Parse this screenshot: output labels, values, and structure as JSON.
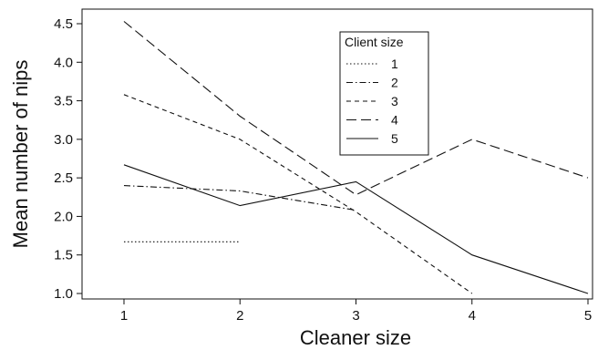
{
  "chart_data": {
    "type": "line",
    "xlabel": "Cleaner size",
    "ylabel": "Mean number of nips",
    "x_ticks": [
      1,
      2,
      3,
      4,
      5
    ],
    "y_ticks": [
      1.0,
      1.5,
      2.0,
      2.5,
      3.0,
      3.5,
      4.0,
      4.5
    ],
    "y_tick_labels": [
      "1.0",
      "1.5",
      "2.0",
      "2.5",
      "3.0",
      "3.5",
      "4.0",
      "4.5"
    ],
    "xlim": [
      0.5,
      5.05
    ],
    "ylim": [
      0.92,
      4.6
    ],
    "legend": {
      "title": "Client size",
      "position": "top-center"
    },
    "series": [
      {
        "name": "1",
        "dash": "dotted",
        "points": [
          [
            1,
            1.67
          ],
          [
            2,
            1.67
          ]
        ]
      },
      {
        "name": "2",
        "dash": "dashdot",
        "points": [
          [
            1,
            2.4
          ],
          [
            2,
            2.33
          ],
          [
            3,
            2.08
          ]
        ]
      },
      {
        "name": "3",
        "dash": "shortdash",
        "points": [
          [
            1,
            3.58
          ],
          [
            2,
            3.0
          ],
          [
            3,
            2.06
          ],
          [
            4,
            1.0
          ]
        ]
      },
      {
        "name": "4",
        "dash": "longdash",
        "points": [
          [
            1,
            4.53
          ],
          [
            2,
            3.3
          ],
          [
            3,
            2.28
          ],
          [
            4,
            3.0
          ],
          [
            5,
            2.5
          ]
        ]
      },
      {
        "name": "5",
        "dash": "solid",
        "points": [
          [
            1,
            2.67
          ],
          [
            2,
            2.14
          ],
          [
            3,
            2.45
          ],
          [
            4,
            1.5
          ],
          [
            5,
            1.0
          ]
        ]
      }
    ]
  }
}
